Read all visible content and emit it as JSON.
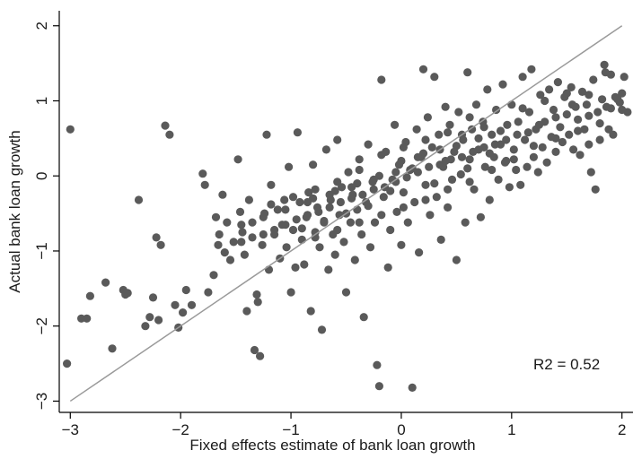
{
  "chart_data": {
    "type": "scatter",
    "title": "",
    "xlabel": "Fixed effects estimate of bank loan growth",
    "ylabel": "Actual bank loan growth",
    "xlim": [
      -3.1,
      2.1
    ],
    "ylim": [
      -3.15,
      2.2
    ],
    "xticks": [
      -3,
      -2,
      -1,
      0,
      1,
      2
    ],
    "yticks": [
      -3,
      -2,
      -1,
      0,
      1,
      2
    ],
    "xtick_labels": [
      "−3",
      "−2",
      "−1",
      "0",
      "1",
      "2"
    ],
    "ytick_labels": [
      "−3",
      "−2",
      "−1",
      "0",
      "1",
      "2"
    ],
    "grid": false,
    "reference_line": {
      "type": "45-degree",
      "from": [
        -3.0,
        -3.0
      ],
      "to": [
        2.0,
        2.0
      ],
      "color": "#9a9a9a"
    },
    "annotation": "R2 = 0.52",
    "point_color": "#5a5a5a",
    "series": [
      {
        "points": [
          [
            -3.0,
            0.62
          ],
          [
            -3.03,
            -2.5
          ],
          [
            -2.9,
            -1.9
          ],
          [
            -2.85,
            -1.9
          ],
          [
            -2.82,
            -1.6
          ],
          [
            -2.68,
            -1.42
          ],
          [
            -2.62,
            -2.3
          ],
          [
            -2.52,
            -1.52
          ],
          [
            -2.5,
            -1.58
          ],
          [
            -2.48,
            -1.56
          ],
          [
            -2.38,
            -0.32
          ],
          [
            -2.32,
            -2.0
          ],
          [
            -2.28,
            -1.88
          ],
          [
            -2.25,
            -1.62
          ],
          [
            -2.22,
            -0.82
          ],
          [
            -2.2,
            -1.92
          ],
          [
            -2.18,
            -0.92
          ],
          [
            -2.14,
            0.67
          ],
          [
            -2.1,
            0.55
          ],
          [
            -2.05,
            -1.72
          ],
          [
            -2.02,
            -2.02
          ],
          [
            -1.98,
            -1.82
          ],
          [
            -1.95,
            -1.52
          ],
          [
            -1.9,
            -1.72
          ],
          [
            -1.8,
            0.03
          ],
          [
            -1.78,
            -0.12
          ],
          [
            -1.75,
            -1.55
          ],
          [
            -1.7,
            -1.32
          ],
          [
            -1.68,
            -0.55
          ],
          [
            -1.66,
            -0.92
          ],
          [
            -1.62,
            -0.25
          ],
          [
            -1.6,
            -1.02
          ],
          [
            -1.58,
            -0.62
          ],
          [
            -1.55,
            -1.12
          ],
          [
            -1.52,
            -0.88
          ],
          [
            -1.48,
            0.22
          ],
          [
            -1.46,
            -0.48
          ],
          [
            -1.44,
            -0.75
          ],
          [
            -1.42,
            -1.05
          ],
          [
            -1.4,
            -1.8
          ],
          [
            -1.38,
            -0.32
          ],
          [
            -1.35,
            -0.62
          ],
          [
            -1.33,
            -2.32
          ],
          [
            -1.31,
            -1.58
          ],
          [
            -1.3,
            -1.68
          ],
          [
            -1.28,
            -2.4
          ],
          [
            -1.26,
            -0.92
          ],
          [
            -1.24,
            -0.5
          ],
          [
            -1.22,
            0.55
          ],
          [
            -1.2,
            -1.25
          ],
          [
            -1.18,
            -0.12
          ],
          [
            -1.15,
            -0.78
          ],
          [
            -1.12,
            -0.45
          ],
          [
            -1.1,
            -1.1
          ],
          [
            -1.08,
            -0.65
          ],
          [
            -1.06,
            -0.32
          ],
          [
            -1.04,
            -0.95
          ],
          [
            -1.02,
            0.12
          ],
          [
            -1.0,
            -1.55
          ],
          [
            -0.98,
            -0.72
          ],
          [
            -0.96,
            -1.22
          ],
          [
            -0.94,
            0.58
          ],
          [
            -0.92,
            -0.35
          ],
          [
            -0.9,
            -0.85
          ],
          [
            -0.88,
            -1.18
          ],
          [
            -0.86,
            -0.55
          ],
          [
            -0.84,
            -0.22
          ],
          [
            -0.82,
            -1.8
          ],
          [
            -0.8,
            0.15
          ],
          [
            -0.78,
            -0.75
          ],
          [
            -0.76,
            -0.42
          ],
          [
            -0.74,
            -0.95
          ],
          [
            -0.72,
            -2.05
          ],
          [
            -0.7,
            -0.62
          ],
          [
            -0.68,
            0.35
          ],
          [
            -0.66,
            -1.25
          ],
          [
            -0.64,
            -0.32
          ],
          [
            -0.62,
            -0.78
          ],
          [
            -0.6,
            -1.05
          ],
          [
            -0.58,
            0.48
          ],
          [
            -0.56,
            -0.52
          ],
          [
            -0.54,
            -0.15
          ],
          [
            -0.52,
            -0.88
          ],
          [
            -0.5,
            -1.55
          ],
          [
            -0.48,
            0.05
          ],
          [
            -0.46,
            -0.62
          ],
          [
            -0.44,
            -0.25
          ],
          [
            -0.42,
            -1.12
          ],
          [
            -0.4,
            -0.45
          ],
          [
            -0.38,
            0.22
          ],
          [
            -0.36,
            -0.78
          ],
          [
            -0.34,
            -1.88
          ],
          [
            -0.32,
            -0.35
          ],
          [
            -0.3,
            0.42
          ],
          [
            -0.28,
            -0.95
          ],
          [
            -0.26,
            -0.08
          ],
          [
            -0.24,
            -0.62
          ],
          [
            -0.22,
            -2.52
          ],
          [
            -0.2,
            -2.8
          ],
          [
            -0.18,
            1.28
          ],
          [
            -0.16,
            -0.28
          ],
          [
            -0.14,
            0.32
          ],
          [
            -0.12,
            -1.22
          ],
          [
            -0.1,
            -0.72
          ],
          [
            -0.08,
            -0.05
          ],
          [
            -0.06,
            0.68
          ],
          [
            -0.04,
            -0.48
          ],
          [
            -0.02,
            0.15
          ],
          [
            0.0,
            -0.92
          ],
          [
            0.02,
            -0.22
          ],
          [
            0.04,
            0.45
          ],
          [
            0.06,
            -0.62
          ],
          [
            0.08,
            0.08
          ],
          [
            0.1,
            -2.82
          ],
          [
            0.12,
            -0.35
          ],
          [
            0.14,
            0.62
          ],
          [
            0.16,
            -1.02
          ],
          [
            0.18,
            0.25
          ],
          [
            0.2,
            1.42
          ],
          [
            0.22,
            -0.12
          ],
          [
            0.24,
            0.78
          ],
          [
            0.26,
            -0.52
          ],
          [
            0.28,
            0.38
          ],
          [
            0.3,
            1.32
          ],
          [
            0.32,
            -0.28
          ],
          [
            0.34,
            0.55
          ],
          [
            0.36,
            -0.85
          ],
          [
            0.38,
            0.12
          ],
          [
            0.4,
            0.92
          ],
          [
            0.42,
            -0.42
          ],
          [
            0.44,
            0.68
          ],
          [
            0.46,
            -0.05
          ],
          [
            0.48,
            0.32
          ],
          [
            0.5,
            -1.12
          ],
          [
            0.52,
            0.85
          ],
          [
            0.54,
            0.02
          ],
          [
            0.56,
            0.48
          ],
          [
            0.58,
            -0.62
          ],
          [
            0.6,
            1.38
          ],
          [
            0.62,
            0.22
          ],
          [
            0.64,
            0.62
          ],
          [
            0.66,
            -0.18
          ],
          [
            0.68,
            0.95
          ],
          [
            0.7,
            0.35
          ],
          [
            0.72,
            -0.55
          ],
          [
            0.74,
            0.72
          ],
          [
            0.76,
            0.12
          ],
          [
            0.78,
            1.15
          ],
          [
            0.8,
            -0.32
          ],
          [
            0.82,
            0.55
          ],
          [
            0.84,
            0.25
          ],
          [
            0.86,
            0.88
          ],
          [
            0.88,
            -0.05
          ],
          [
            0.9,
            0.42
          ],
          [
            0.92,
            1.22
          ],
          [
            0.94,
            0.18
          ],
          [
            0.96,
            0.68
          ],
          [
            0.98,
            -0.15
          ],
          [
            1.0,
            0.95
          ],
          [
            1.02,
            0.35
          ],
          [
            1.04,
            0.08
          ],
          [
            1.06,
            0.72
          ],
          [
            1.08,
            -0.12
          ],
          [
            1.1,
            1.32
          ],
          [
            1.12,
            0.48
          ],
          [
            1.14,
            0.12
          ],
          [
            1.16,
            0.85
          ],
          [
            1.18,
            1.42
          ],
          [
            1.2,
            0.25
          ],
          [
            1.22,
            0.62
          ],
          [
            1.24,
            0.05
          ],
          [
            1.26,
            1.08
          ],
          [
            1.28,
            0.38
          ],
          [
            1.3,
            0.72
          ],
          [
            1.32,
            0.18
          ],
          [
            1.34,
            1.15
          ],
          [
            1.36,
            0.52
          ],
          [
            1.38,
            0.88
          ],
          [
            1.4,
            0.32
          ],
          [
            1.42,
            1.25
          ],
          [
            1.44,
            0.65
          ],
          [
            1.46,
            0.45
          ],
          [
            1.48,
            1.05
          ],
          [
            1.5,
            0.82
          ],
          [
            1.52,
            0.55
          ],
          [
            1.54,
            1.18
          ],
          [
            1.56,
            0.35
          ],
          [
            1.58,
            0.92
          ],
          [
            1.6,
            0.75
          ],
          [
            1.62,
            0.28
          ],
          [
            1.64,
            1.12
          ],
          [
            1.66,
            0.62
          ],
          [
            1.68,
            0.95
          ],
          [
            1.7,
            0.42
          ],
          [
            1.72,
            0.05
          ],
          [
            1.74,
            1.28
          ],
          [
            1.76,
            -0.18
          ],
          [
            1.78,
            0.85
          ],
          [
            1.8,
            0.48
          ],
          [
            1.82,
            1.02
          ],
          [
            1.84,
            1.48
          ],
          [
            1.86,
            0.92
          ],
          [
            1.88,
            0.62
          ],
          [
            1.9,
            1.35
          ],
          [
            1.92,
            0.55
          ],
          [
            1.94,
            1.05
          ],
          [
            1.96,
            1.02
          ],
          [
            1.98,
            0.98
          ],
          [
            2.0,
            0.88
          ],
          [
            2.02,
            1.32
          ],
          [
            2.05,
            0.85
          ],
          [
            1.85,
            1.38
          ],
          [
            1.7,
            1.08
          ],
          [
            1.55,
            0.95
          ],
          [
            1.4,
            0.78
          ],
          [
            1.25,
            0.68
          ],
          [
            1.15,
            0.58
          ],
          [
            1.05,
            0.55
          ],
          [
            0.95,
            0.48
          ],
          [
            0.85,
            0.42
          ],
          [
            0.75,
            0.38
          ],
          [
            0.65,
            0.32
          ],
          [
            0.55,
            0.25
          ],
          [
            0.45,
            0.22
          ],
          [
            0.35,
            0.15
          ],
          [
            0.25,
            0.12
          ],
          [
            0.15,
            0.05
          ],
          [
            0.05,
            -0.02
          ],
          [
            -0.05,
            -0.08
          ],
          [
            -0.15,
            -0.15
          ],
          [
            -0.25,
            -0.18
          ],
          [
            -0.35,
            -0.25
          ],
          [
            -0.45,
            -0.3
          ],
          [
            -0.55,
            -0.35
          ],
          [
            -0.65,
            -0.42
          ],
          [
            -0.75,
            -0.48
          ],
          [
            -0.85,
            -0.52
          ],
          [
            -0.95,
            -0.58
          ],
          [
            -1.05,
            -0.65
          ],
          [
            -1.15,
            -0.72
          ],
          [
            -1.25,
            -0.78
          ],
          [
            -1.35,
            -0.82
          ],
          [
            -1.45,
            -0.88
          ],
          [
            0.9,
            0.6
          ],
          [
            0.8,
            0.3
          ],
          [
            0.7,
            0.5
          ],
          [
            0.6,
            0.1
          ],
          [
            0.5,
            0.4
          ],
          [
            0.4,
            0.2
          ],
          [
            0.3,
            -0.1
          ],
          [
            0.2,
            0.3
          ],
          [
            0.1,
            0.1
          ],
          [
            0.0,
            0.2
          ],
          [
            -0.1,
            -0.2
          ],
          [
            -0.2,
            0.0
          ],
          [
            -0.3,
            -0.4
          ],
          [
            -0.4,
            -0.1
          ],
          [
            -0.5,
            -0.5
          ],
          [
            -0.6,
            -0.2
          ],
          [
            -0.7,
            -0.6
          ],
          [
            -0.8,
            -0.3
          ],
          [
            -0.9,
            -0.7
          ],
          [
            1.1,
            0.9
          ],
          [
            1.2,
            0.4
          ],
          [
            1.3,
            1.0
          ],
          [
            1.4,
            0.5
          ],
          [
            1.5,
            1.1
          ],
          [
            1.6,
            0.6
          ],
          [
            1.7,
            0.8
          ],
          [
            1.8,
            0.7
          ],
          [
            1.9,
            0.9
          ],
          [
            2.0,
            1.1
          ],
          [
            0.95,
            0.2
          ],
          [
            0.75,
            0.65
          ],
          [
            0.55,
            0.55
          ],
          [
            0.35,
            0.35
          ],
          [
            0.15,
            0.25
          ],
          [
            -0.05,
            0.05
          ],
          [
            -0.25,
            -0.05
          ],
          [
            -0.45,
            -0.15
          ],
          [
            -0.65,
            -0.25
          ],
          [
            -0.85,
            -0.35
          ],
          [
            -1.05,
            -0.45
          ],
          [
            -1.25,
            -0.55
          ],
          [
            -1.45,
            -0.65
          ],
          [
            -1.65,
            -0.78
          ],
          [
            0.62,
            0.78
          ],
          [
            0.42,
            0.58
          ],
          [
            0.22,
            0.48
          ],
          [
            0.02,
            0.38
          ],
          [
            -0.18,
            0.28
          ],
          [
            -0.38,
            0.08
          ],
          [
            -0.58,
            -0.08
          ],
          [
            -0.78,
            -0.18
          ],
          [
            -0.98,
            -0.28
          ],
          [
            -1.18,
            -0.38
          ],
          [
            1.02,
            0.22
          ],
          [
            0.82,
            0.08
          ],
          [
            0.62,
            -0.08
          ],
          [
            0.42,
            -0.18
          ],
          [
            0.22,
            -0.32
          ],
          [
            0.02,
            -0.42
          ],
          [
            -0.18,
            -0.52
          ],
          [
            -0.38,
            -0.62
          ],
          [
            -0.58,
            -0.72
          ],
          [
            -0.78,
            -0.82
          ]
        ]
      }
    ]
  }
}
